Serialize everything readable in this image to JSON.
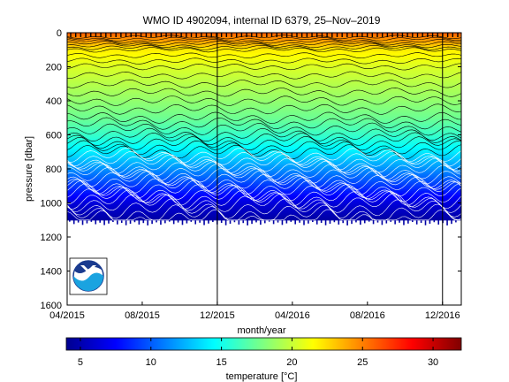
{
  "chart_data": {
    "type": "heatmap",
    "title": "WMO ID 4902094, internal ID 6379, 25–Nov–2019",
    "xlabel": "month/year",
    "ylabel": "pressure [dbar]",
    "colorbar_label": "temperature [°C]",
    "x_ticks": [
      "04/2015",
      "08/2015",
      "12/2015",
      "04/2016",
      "08/2016",
      "12/2016"
    ],
    "x_range": [
      "2015-04",
      "2017-01"
    ],
    "y_ticks": [
      0,
      200,
      400,
      600,
      800,
      1000,
      1200,
      1400,
      1600
    ],
    "ylim": [
      0,
      1600
    ],
    "y_reversed": true,
    "profile_max_pressure": 1100,
    "colorbar_ticks": [
      5,
      10,
      15,
      20,
      25,
      30
    ],
    "colorbar_range": [
      4,
      32
    ],
    "colormap": "jet",
    "temperature_profile": {
      "pressure": [
        0,
        50,
        100,
        200,
        300,
        400,
        500,
        600,
        700,
        800,
        900,
        1000,
        1100
      ],
      "temperature": [
        26,
        24,
        22,
        20.5,
        19.5,
        18.5,
        17.5,
        16,
        14,
        11.5,
        9,
        6.5,
        5
      ]
    },
    "vertical_lines": [
      "2015-12",
      "2016-12"
    ],
    "logo": "NOAA"
  }
}
